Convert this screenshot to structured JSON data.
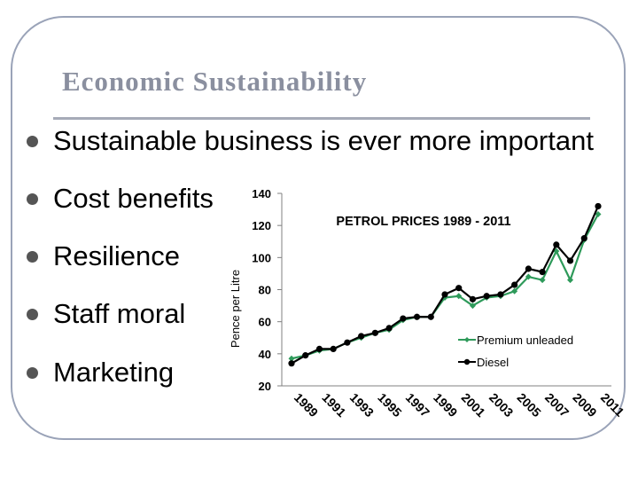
{
  "slide": {
    "title": "Economic Sustainability",
    "bullets": [
      "Sustainable business is ever more important",
      "Cost benefits",
      "Resilience",
      "Staff moral",
      "Marketing"
    ]
  },
  "chart_data": {
    "type": "line",
    "title": "PETROL PRICES 1989 - 2011",
    "ylabel": "Pence per Litre",
    "xlabel": "",
    "ylim": [
      20,
      140
    ],
    "yticks": [
      20,
      40,
      60,
      80,
      100,
      120,
      140
    ],
    "x": [
      1989,
      1990,
      1991,
      1992,
      1993,
      1994,
      1995,
      1996,
      1997,
      1998,
      1999,
      2000,
      2001,
      2002,
      2003,
      2004,
      2005,
      2006,
      2007,
      2008,
      2009,
      2010,
      2011
    ],
    "xtick_labels": [
      "1989",
      "1991",
      "1993",
      "1995",
      "1997",
      "1999",
      "2001",
      "2003",
      "2005",
      "2007",
      "2009",
      "2011"
    ],
    "legend": "right",
    "grid": false,
    "series": [
      {
        "name": "Premium unleaded",
        "color": "#2e9a5a",
        "marker": "diamond",
        "values": [
          37,
          39,
          42,
          43,
          47,
          50,
          53,
          55,
          61,
          63,
          63,
          75,
          76,
          70,
          75,
          76,
          79,
          88,
          86,
          104,
          86,
          111,
          127
        ]
      },
      {
        "name": "Diesel",
        "color": "#000000",
        "marker": "circle",
        "values": [
          34,
          39,
          43,
          43,
          47,
          51,
          53,
          56,
          62,
          63,
          63,
          77,
          81,
          74,
          76,
          77,
          83,
          93,
          91,
          108,
          98,
          112,
          132
        ]
      }
    ]
  }
}
